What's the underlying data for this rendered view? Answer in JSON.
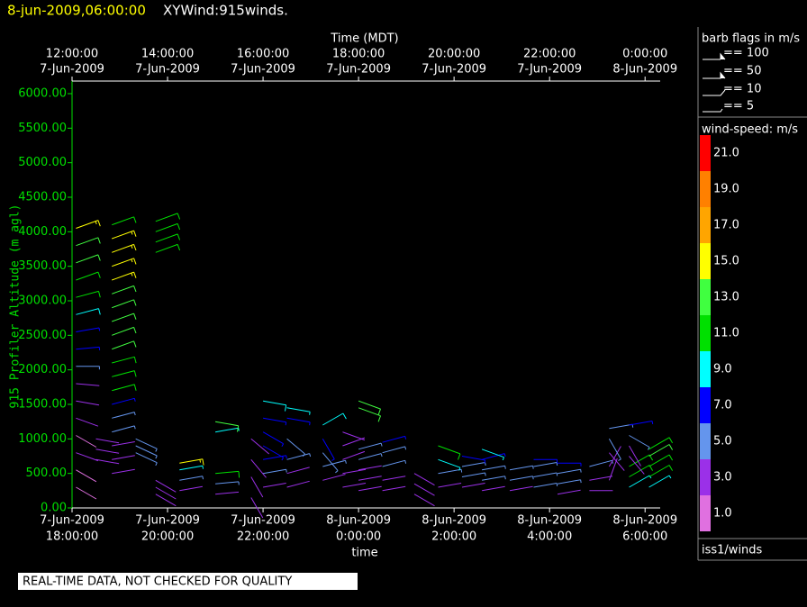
{
  "chart_data": {
    "type": "barb",
    "title": "8-jun-2009,06:00:00",
    "subtitle": "XYWind:915winds.",
    "top_axis_label": "Time (MDT)",
    "x_label": "time",
    "y_label": "915 Profiler Altitude (m agl)",
    "footer": "REAL-TIME DATA, NOT CHECKED FOR QUALITY",
    "source": "iss1/winds",
    "legend_title": "barb flags in m/s",
    "legend_entries": [
      "== 100",
      "== 50",
      "== 10",
      "== 5"
    ],
    "colorbar_title": "wind-speed: m/s",
    "colorbar": [
      {
        "value": 1,
        "label": "1.0",
        "color": "#e070e0"
      },
      {
        "value": 3,
        "label": "3.0",
        "color": "#9b30e8"
      },
      {
        "value": 5,
        "label": "5.0",
        "color": "#6495ed"
      },
      {
        "value": 7,
        "label": "7.0",
        "color": "#0000ff"
      },
      {
        "value": 9,
        "label": "9.0",
        "color": "#00ffff"
      },
      {
        "value": 11,
        "label": "11.0",
        "color": "#00e000"
      },
      {
        "value": 13,
        "label": "13.0",
        "color": "#40ff40"
      },
      {
        "value": 15,
        "label": "15.0",
        "color": "#ffff00"
      },
      {
        "value": 17,
        "label": "17.0",
        "color": "#ffa500"
      },
      {
        "value": 19,
        "label": "19.0",
        "color": "#ff8000"
      },
      {
        "value": 21,
        "label": "21.0",
        "color": "#ff0000"
      }
    ],
    "xlim": [
      "2009-06-07T18:00",
      "2009-06-08T06:19"
    ],
    "xticks": [
      {
        "value": "2009-06-07T18:00",
        "date": "7-Jun-2009",
        "time": "18:00:00"
      },
      {
        "value": "2009-06-07T20:00",
        "date": "7-Jun-2009",
        "time": "20:00:00"
      },
      {
        "value": "2009-06-07T22:00",
        "date": "7-Jun-2009",
        "time": "22:00:00"
      },
      {
        "value": "2009-06-08T00:00",
        "date": "8-Jun-2009",
        "time": "0:00:00"
      },
      {
        "value": "2009-06-08T02:00",
        "date": "8-Jun-2009",
        "time": "2:00:00"
      },
      {
        "value": "2009-06-08T04:00",
        "date": "8-Jun-2009",
        "time": "4:00:00"
      },
      {
        "value": "2009-06-08T06:00",
        "date": "8-Jun-2009",
        "time": "6:00:00"
      }
    ],
    "top_xticks": [
      {
        "value": "2009-06-07T18:00",
        "time": "12:00:00",
        "date": "7-Jun-2009"
      },
      {
        "value": "2009-06-07T20:00",
        "time": "14:00:00",
        "date": "7-Jun-2009"
      },
      {
        "value": "2009-06-07T22:00",
        "time": "16:00:00",
        "date": "7-Jun-2009"
      },
      {
        "value": "2009-06-08T00:00",
        "time": "18:00:00",
        "date": "7-Jun-2009"
      },
      {
        "value": "2009-06-08T02:00",
        "time": "20:00:00",
        "date": "7-Jun-2009"
      },
      {
        "value": "2009-06-08T04:00",
        "time": "22:00:00",
        "date": "7-Jun-2009"
      },
      {
        "value": "2009-06-08T06:00",
        "time": "0:00:00",
        "date": "8-Jun-2009"
      }
    ],
    "ylim": [
      0,
      6000
    ],
    "yticks": [
      {
        "value": 0,
        "label": "0.00"
      },
      {
        "value": 500,
        "label": "500.00"
      },
      {
        "value": 1000,
        "label": "1000.00"
      },
      {
        "value": 1500,
        "label": "1500.00"
      },
      {
        "value": 2000,
        "label": "2000.00"
      },
      {
        "value": 2500,
        "label": "2500.00"
      },
      {
        "value": 3000,
        "label": "3000.00"
      },
      {
        "value": 3500,
        "label": "3500.00"
      },
      {
        "value": 4000,
        "label": "4000.00"
      },
      {
        "value": 4500,
        "label": "4500.00"
      },
      {
        "value": 5000,
        "label": "5000.00"
      },
      {
        "value": 5500,
        "label": "5500.00"
      },
      {
        "value": 6000,
        "label": "6000.00"
      }
    ],
    "profiles": [
      {
        "time": "2009-06-07T18:05",
        "altitudes": [
          300,
          550,
          800,
          1050,
          1300,
          1550,
          1800,
          2050,
          2300,
          2550,
          2800,
          3050,
          3300,
          3550,
          3800,
          4050
        ],
        "speeds": [
          2,
          2,
          3,
          2,
          3,
          4,
          4,
          6,
          7,
          8,
          10,
          11,
          12,
          13,
          14,
          15
        ],
        "directions": [
          120,
          120,
          110,
          120,
          110,
          100,
          95,
          90,
          85,
          80,
          75,
          75,
          70,
          70,
          70,
          70
        ]
      },
      {
        "time": "2009-06-07T18:30",
        "altitudes": [
          700,
          850,
          1000
        ],
        "speeds": [
          3,
          3,
          3
        ],
        "directions": [
          100,
          100,
          100
        ]
      },
      {
        "time": "2009-06-07T18:50",
        "altitudes": [
          500,
          700,
          900,
          1100,
          1300,
          1500,
          1700,
          1900,
          2100,
          2300,
          2500,
          2700,
          2900,
          3100,
          3300,
          3500,
          3700,
          3900,
          4100
        ],
        "speeds": [
          3,
          3,
          4,
          5,
          6,
          8,
          11,
          12,
          12,
          13,
          14,
          14,
          13,
          14,
          15,
          15,
          16,
          15,
          12
        ],
        "directions": [
          80,
          80,
          80,
          75,
          75,
          75,
          75,
          75,
          75,
          70,
          70,
          70,
          70,
          70,
          70,
          70,
          70,
          70,
          70
        ]
      },
      {
        "time": "2009-06-07T19:20",
        "altitudes": [
          800,
          900,
          1000
        ],
        "speeds": [
          6,
          6,
          6
        ],
        "directions": [
          115,
          115,
          115
        ]
      },
      {
        "time": "2009-06-07T19:45",
        "altitudes": [
          200,
          300,
          400,
          3700,
          3850,
          4000,
          4150
        ],
        "speeds": [
          4,
          4,
          4,
          12,
          12,
          12,
          12
        ],
        "directions": [
          120,
          120,
          120,
          70,
          70,
          70,
          70
        ]
      },
      {
        "time": "2009-06-07T20:15",
        "altitudes": [
          250,
          400,
          550,
          650
        ],
        "speeds": [
          4,
          6,
          9,
          15
        ],
        "directions": [
          80,
          80,
          80,
          80
        ]
      },
      {
        "time": "2009-06-07T21:00",
        "altitudes": [
          200,
          350,
          500,
          1100,
          1250
        ],
        "speeds": [
          3,
          5,
          12,
          9,
          14
        ],
        "directions": [
          85,
          85,
          85,
          80,
          100
        ]
      },
      {
        "time": "2009-06-07T21:45",
        "altitudes": [
          150,
          450,
          700,
          1000
        ],
        "speeds": [
          3,
          4,
          4,
          3
        ],
        "directions": [
          150,
          150,
          140,
          130
        ]
      },
      {
        "time": "2009-06-07T22:00",
        "altitudes": [
          300,
          500,
          700,
          900,
          1100,
          1300,
          1550
        ],
        "speeds": [
          4,
          5,
          7,
          8,
          7,
          8,
          10
        ],
        "directions": [
          80,
          80,
          80,
          120,
          120,
          100,
          100
        ]
      },
      {
        "time": "2009-06-07T22:30",
        "altitudes": [
          300,
          500,
          700,
          1000,
          1300,
          1450
        ],
        "speeds": [
          3,
          4,
          6,
          5,
          7,
          9
        ],
        "directions": [
          75,
          75,
          75,
          130,
          100,
          100
        ]
      },
      {
        "time": "2009-06-07T23:15",
        "altitudes": [
          400,
          600,
          800,
          1000,
          1200
        ],
        "speeds": [
          3,
          5,
          6,
          7,
          10
        ],
        "directions": [
          75,
          75,
          140,
          150,
          60
        ]
      },
      {
        "time": "2009-06-07T23:40",
        "altitudes": [
          300,
          500,
          700,
          900,
          1100
        ],
        "speeds": [
          3,
          3,
          4,
          4,
          3
        ],
        "directions": [
          80,
          80,
          70,
          70,
          110
        ]
      },
      {
        "time": "2009-06-08T00:00",
        "altitudes": [
          250,
          400,
          550,
          700,
          850,
          1450,
          1550
        ],
        "speeds": [
          3,
          3,
          4,
          5,
          6,
          13,
          14
        ],
        "directions": [
          80,
          80,
          80,
          75,
          75,
          110,
          110
        ]
      },
      {
        "time": "2009-06-08T00:30",
        "altitudes": [
          250,
          400,
          600,
          800,
          950
        ],
        "speeds": [
          4,
          4,
          6,
          6,
          7
        ],
        "directions": [
          80,
          80,
          75,
          75,
          75
        ]
      },
      {
        "time": "2009-06-08T01:10",
        "altitudes": [
          200,
          350,
          500
        ],
        "speeds": [
          3,
          3,
          3
        ],
        "directions": [
          120,
          120,
          120
        ]
      },
      {
        "time": "2009-06-08T01:40",
        "altitudes": [
          300,
          500,
          700,
          900
        ],
        "speeds": [
          4,
          6,
          9,
          11
        ],
        "directions": [
          80,
          80,
          110,
          110
        ]
      },
      {
        "time": "2009-06-08T02:10",
        "altitudes": [
          300,
          450,
          600,
          750
        ],
        "speeds": [
          4,
          5,
          6,
          8
        ],
        "directions": [
          80,
          80,
          80,
          100
        ]
      },
      {
        "time": "2009-06-08T02:35",
        "altitudes": [
          250,
          400,
          550,
          700,
          850
        ],
        "speeds": [
          4,
          5,
          6,
          8,
          9
        ],
        "directions": [
          80,
          80,
          80,
          75,
          110
        ]
      },
      {
        "time": "2009-06-08T03:10",
        "altitudes": [
          250,
          400,
          550
        ],
        "speeds": [
          4,
          5,
          6
        ],
        "directions": [
          80,
          80,
          80
        ]
      },
      {
        "time": "2009-06-08T03:40",
        "altitudes": [
          300,
          450,
          600,
          700
        ],
        "speeds": [
          5,
          6,
          6,
          7
        ],
        "directions": [
          80,
          80,
          80,
          90
        ]
      },
      {
        "time": "2009-06-08T04:10",
        "altitudes": [
          200,
          350,
          500,
          650
        ],
        "speeds": [
          4,
          5,
          6,
          7
        ],
        "directions": [
          80,
          80,
          80,
          90
        ]
      },
      {
        "time": "2009-06-08T04:50",
        "altitudes": [
          250,
          400,
          600
        ],
        "speeds": [
          3,
          4,
          5
        ],
        "directions": [
          90,
          80,
          75
        ]
      },
      {
        "time": "2009-06-08T05:15",
        "altitudes": [
          400,
          600,
          800,
          1000,
          1150
        ],
        "speeds": [
          3,
          4,
          4,
          5,
          6
        ],
        "directions": [
          20,
          30,
          140,
          150,
          80
        ]
      },
      {
        "time": "2009-06-08T05:40",
        "altitudes": [
          300,
          450,
          600,
          750,
          900,
          1050,
          1200
        ],
        "speeds": [
          9,
          11,
          12,
          4,
          4,
          6,
          7
        ],
        "directions": [
          60,
          60,
          60,
          140,
          150,
          120,
          80
        ]
      },
      {
        "time": "2009-06-08T06:05",
        "altitudes": [
          300,
          450,
          600,
          750,
          850
        ],
        "speeds": [
          9,
          11,
          12,
          13,
          12
        ],
        "directions": [
          60,
          60,
          60,
          60,
          60
        ]
      }
    ]
  }
}
